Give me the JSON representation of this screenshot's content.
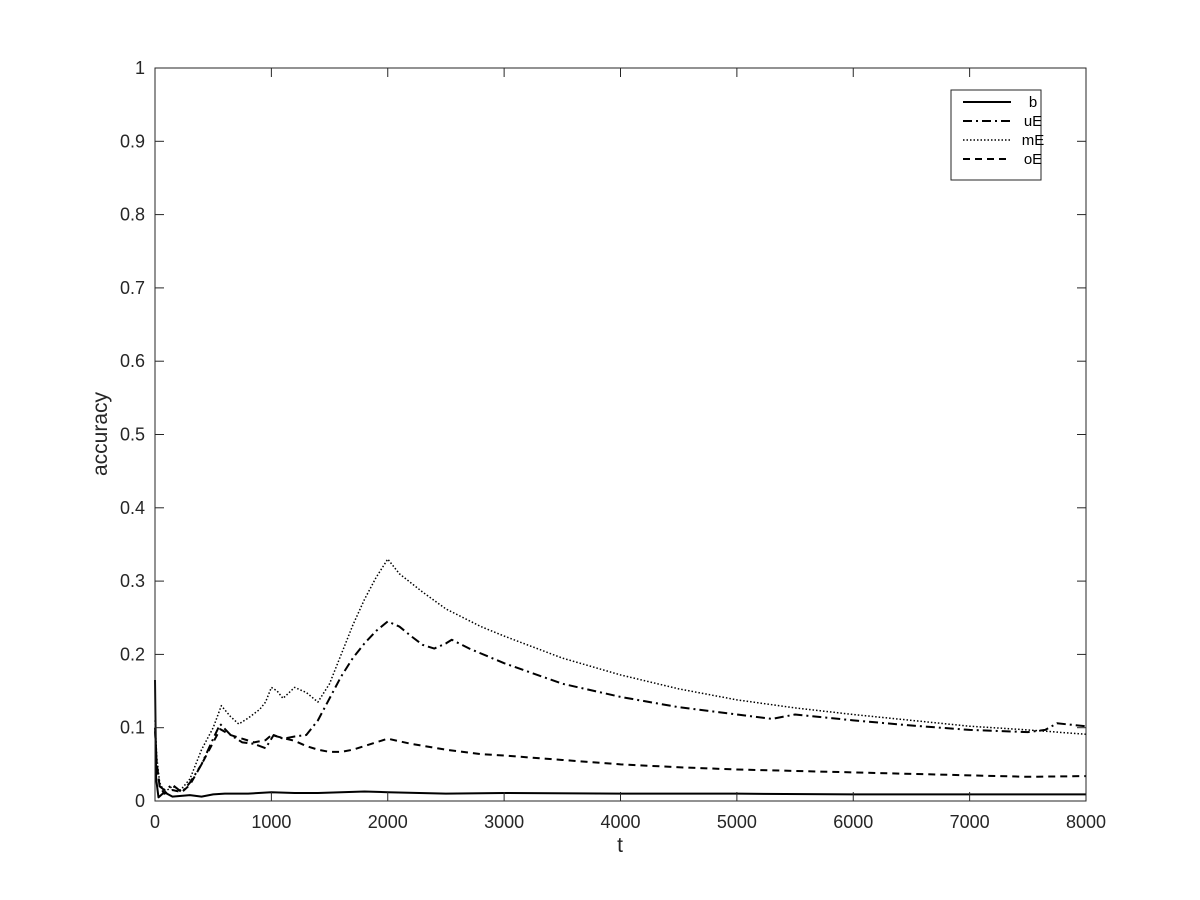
{
  "chart_data": {
    "type": "line",
    "title": "",
    "xlabel": "t",
    "ylabel": "accuracy",
    "xlim": [
      0,
      8000
    ],
    "ylim": [
      0,
      1
    ],
    "xticks": [
      0,
      1000,
      2000,
      3000,
      4000,
      5000,
      6000,
      7000,
      8000
    ],
    "yticks": [
      0,
      0.1,
      0.2,
      0.3,
      0.4,
      0.5,
      0.6,
      0.7,
      0.8,
      0.9,
      1
    ],
    "ytick_labels": [
      "0",
      "0.1",
      "0.2",
      "0.3",
      "0.4",
      "0.5",
      "0.6",
      "0.7",
      "0.8",
      "0.9",
      "1"
    ],
    "grid": false,
    "legend_position": "top-right",
    "series": [
      {
        "name": "b",
        "line_style": "solid",
        "color": "#000000",
        "points": [
          [
            0,
            0.165
          ],
          [
            10,
            0.03
          ],
          [
            30,
            0.005
          ],
          [
            80,
            0.012
          ],
          [
            150,
            0.006
          ],
          [
            300,
            0.008
          ],
          [
            400,
            0.006
          ],
          [
            500,
            0.009
          ],
          [
            600,
            0.01
          ],
          [
            800,
            0.01
          ],
          [
            1000,
            0.012
          ],
          [
            1200,
            0.011
          ],
          [
            1400,
            0.011
          ],
          [
            1600,
            0.012
          ],
          [
            1800,
            0.013
          ],
          [
            2000,
            0.012
          ],
          [
            2500,
            0.01
          ],
          [
            3000,
            0.011
          ],
          [
            4000,
            0.01
          ],
          [
            5000,
            0.01
          ],
          [
            6000,
            0.009
          ],
          [
            7000,
            0.009
          ],
          [
            8000,
            0.009
          ]
        ]
      },
      {
        "name": "uE",
        "line_style": "dashdot",
        "color": "#000000",
        "points": [
          [
            0,
            0.1
          ],
          [
            15,
            0.05
          ],
          [
            40,
            0.02
          ],
          [
            80,
            0.015
          ],
          [
            150,
            0.022
          ],
          [
            230,
            0.012
          ],
          [
            300,
            0.025
          ],
          [
            400,
            0.05
          ],
          [
            500,
            0.085
          ],
          [
            560,
            0.105
          ],
          [
            650,
            0.09
          ],
          [
            750,
            0.08
          ],
          [
            850,
            0.078
          ],
          [
            950,
            0.072
          ],
          [
            1020,
            0.09
          ],
          [
            1100,
            0.085
          ],
          [
            1200,
            0.088
          ],
          [
            1300,
            0.09
          ],
          [
            1400,
            0.11
          ],
          [
            1500,
            0.14
          ],
          [
            1600,
            0.17
          ],
          [
            1700,
            0.195
          ],
          [
            1800,
            0.215
          ],
          [
            1900,
            0.232
          ],
          [
            2000,
            0.245
          ],
          [
            2100,
            0.238
          ],
          [
            2200,
            0.225
          ],
          [
            2300,
            0.213
          ],
          [
            2400,
            0.208
          ],
          [
            2500,
            0.215
          ],
          [
            2550,
            0.22
          ],
          [
            2700,
            0.208
          ],
          [
            3000,
            0.188
          ],
          [
            3500,
            0.16
          ],
          [
            4000,
            0.142
          ],
          [
            4500,
            0.128
          ],
          [
            5000,
            0.118
          ],
          [
            5300,
            0.112
          ],
          [
            5500,
            0.118
          ],
          [
            6000,
            0.11
          ],
          [
            6500,
            0.103
          ],
          [
            7000,
            0.097
          ],
          [
            7500,
            0.094
          ],
          [
            7650,
            0.097
          ],
          [
            7750,
            0.106
          ],
          [
            8000,
            0.102
          ]
        ]
      },
      {
        "name": "mE",
        "line_style": "dotted",
        "color": "#000000",
        "points": [
          [
            0,
            0.11
          ],
          [
            15,
            0.06
          ],
          [
            40,
            0.025
          ],
          [
            80,
            0.012
          ],
          [
            150,
            0.02
          ],
          [
            220,
            0.015
          ],
          [
            300,
            0.03
          ],
          [
            400,
            0.07
          ],
          [
            500,
            0.1
          ],
          [
            570,
            0.13
          ],
          [
            650,
            0.115
          ],
          [
            720,
            0.105
          ],
          [
            800,
            0.113
          ],
          [
            900,
            0.125
          ],
          [
            950,
            0.135
          ],
          [
            1000,
            0.155
          ],
          [
            1050,
            0.15
          ],
          [
            1100,
            0.14
          ],
          [
            1200,
            0.155
          ],
          [
            1300,
            0.148
          ],
          [
            1400,
            0.135
          ],
          [
            1500,
            0.16
          ],
          [
            1600,
            0.2
          ],
          [
            1700,
            0.24
          ],
          [
            1800,
            0.275
          ],
          [
            1900,
            0.305
          ],
          [
            2000,
            0.33
          ],
          [
            2100,
            0.31
          ],
          [
            2300,
            0.285
          ],
          [
            2500,
            0.262
          ],
          [
            2800,
            0.238
          ],
          [
            3000,
            0.225
          ],
          [
            3500,
            0.195
          ],
          [
            4000,
            0.172
          ],
          [
            4500,
            0.153
          ],
          [
            5000,
            0.138
          ],
          [
            5500,
            0.127
          ],
          [
            6000,
            0.118
          ],
          [
            6500,
            0.11
          ],
          [
            7000,
            0.102
          ],
          [
            7500,
            0.097
          ],
          [
            8000,
            0.091
          ]
        ]
      },
      {
        "name": "oE",
        "line_style": "dashed",
        "color": "#000000",
        "points": [
          [
            0,
            0.095
          ],
          [
            15,
            0.05
          ],
          [
            40,
            0.02
          ],
          [
            80,
            0.01
          ],
          [
            150,
            0.015
          ],
          [
            230,
            0.012
          ],
          [
            300,
            0.022
          ],
          [
            400,
            0.05
          ],
          [
            500,
            0.08
          ],
          [
            560,
            0.098
          ],
          [
            650,
            0.09
          ],
          [
            750,
            0.085
          ],
          [
            850,
            0.08
          ],
          [
            950,
            0.083
          ],
          [
            1000,
            0.09
          ],
          [
            1100,
            0.086
          ],
          [
            1200,
            0.082
          ],
          [
            1300,
            0.075
          ],
          [
            1400,
            0.07
          ],
          [
            1500,
            0.067
          ],
          [
            1600,
            0.067
          ],
          [
            1700,
            0.07
          ],
          [
            1800,
            0.075
          ],
          [
            1900,
            0.08
          ],
          [
            2000,
            0.085
          ],
          [
            2200,
            0.078
          ],
          [
            2500,
            0.07
          ],
          [
            2800,
            0.064
          ],
          [
            3000,
            0.062
          ],
          [
            3500,
            0.056
          ],
          [
            4000,
            0.05
          ],
          [
            4500,
            0.046
          ],
          [
            5000,
            0.043
          ],
          [
            5500,
            0.041
          ],
          [
            6000,
            0.039
          ],
          [
            6500,
            0.037
          ],
          [
            7000,
            0.035
          ],
          [
            7500,
            0.033
          ],
          [
            8000,
            0.034
          ]
        ]
      }
    ]
  }
}
